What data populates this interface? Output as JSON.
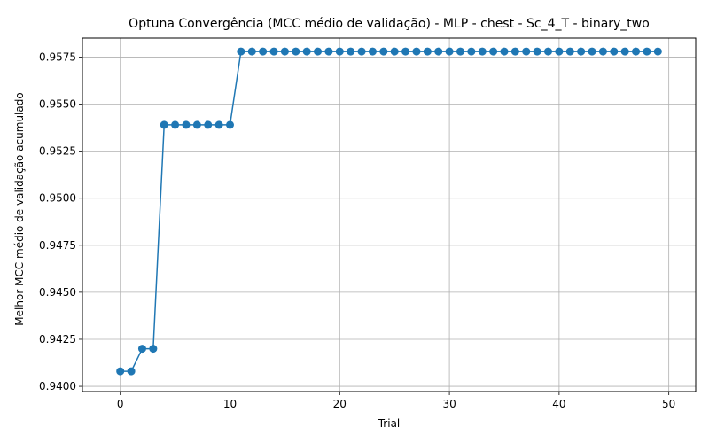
{
  "chart_data": {
    "type": "line",
    "title": "Optuna Convergência (MCC médio de validação) - MLP - chest - Sc_4_T - binary_two",
    "xlabel": "Trial",
    "ylabel": "Melhor MCC médio de validação acumulado",
    "xlim": [
      -3.45,
      52.45
    ],
    "ylim": [
      0.93972,
      0.95851
    ],
    "xticks": [
      0,
      10,
      20,
      30,
      40,
      50
    ],
    "yticks": [
      0.94,
      0.9425,
      0.945,
      0.9475,
      0.95,
      0.9525,
      0.955,
      0.9575
    ],
    "ytick_labels": [
      "0.9400",
      "0.9425",
      "0.9450",
      "0.9475",
      "0.9500",
      "0.9525",
      "0.9550",
      "0.9575"
    ],
    "grid": true,
    "series": [
      {
        "color": "#1f77b4",
        "marker": "circle",
        "x": [
          0,
          1,
          2,
          3,
          4,
          5,
          6,
          7,
          8,
          9,
          10,
          11,
          12,
          13,
          14,
          15,
          16,
          17,
          18,
          19,
          20,
          21,
          22,
          23,
          24,
          25,
          26,
          27,
          28,
          29,
          30,
          31,
          32,
          33,
          34,
          35,
          36,
          37,
          38,
          39,
          40,
          41,
          42,
          43,
          44,
          45,
          46,
          47,
          48,
          49
        ],
        "y": [
          0.9408,
          0.9408,
          0.942,
          0.942,
          0.9539,
          0.9539,
          0.9539,
          0.9539,
          0.9539,
          0.9539,
          0.9539,
          0.9578,
          0.9578,
          0.9578,
          0.9578,
          0.9578,
          0.9578,
          0.9578,
          0.9578,
          0.9578,
          0.9578,
          0.9578,
          0.9578,
          0.9578,
          0.9578,
          0.9578,
          0.9578,
          0.9578,
          0.9578,
          0.9578,
          0.9578,
          0.9578,
          0.9578,
          0.9578,
          0.9578,
          0.9578,
          0.9578,
          0.9578,
          0.9578,
          0.9578,
          0.9578,
          0.9578,
          0.9578,
          0.9578,
          0.9578,
          0.9578,
          0.9578,
          0.9578,
          0.9578,
          0.9578
        ]
      }
    ]
  }
}
